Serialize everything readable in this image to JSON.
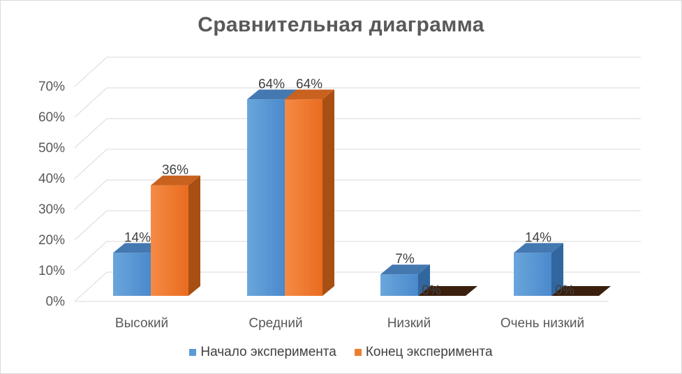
{
  "chart_data": {
    "type": "bar",
    "title": "Сравнительная  диаграмма",
    "categories": [
      "Высокий",
      "Средний",
      "Низкий",
      "Очень низкий"
    ],
    "series": [
      {
        "name": "Начало эксперимента",
        "values": [
          14,
          64,
          7,
          14
        ],
        "labels": [
          "14%",
          "64%",
          "7%",
          "14%"
        ],
        "color": "#5b9bd5"
      },
      {
        "name": "Конец эксперимента",
        "values": [
          36,
          64,
          0,
          0
        ],
        "labels": [
          "36%",
          "64%",
          "0%",
          "0%"
        ],
        "color": "#ed7d31"
      }
    ],
    "y_ticks": [
      "0%",
      "10%",
      "20%",
      "30%",
      "40%",
      "50%",
      "60%",
      "70%"
    ],
    "ylim": [
      0,
      70
    ],
    "grid": true,
    "legend_position": "bottom",
    "style": "3d-clustered-column"
  }
}
